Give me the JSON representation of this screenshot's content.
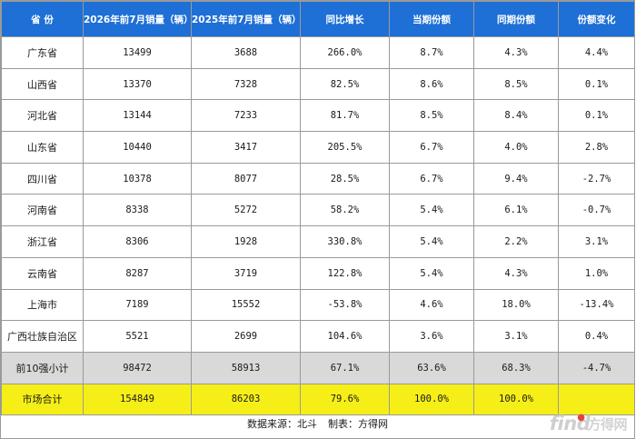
{
  "headers": [
    "省  份",
    "2026年前7月销量（辆）",
    "2025年前7月销量（辆）",
    "同比增长",
    "当期份额",
    "同期份额",
    "份额变化"
  ],
  "rows": [
    {
      "province": "广东省",
      "sales_2026": "13499",
      "sales_2025": "3688",
      "yoy": "266.0%",
      "share_now": "8.7%",
      "share_prev": "4.3%",
      "share_change": "4.4%"
    },
    {
      "province": "山西省",
      "sales_2026": "13370",
      "sales_2025": "7328",
      "yoy": "82.5%",
      "share_now": "8.6%",
      "share_prev": "8.5%",
      "share_change": "0.1%"
    },
    {
      "province": "河北省",
      "sales_2026": "13144",
      "sales_2025": "7233",
      "yoy": "81.7%",
      "share_now": "8.5%",
      "share_prev": "8.4%",
      "share_change": "0.1%"
    },
    {
      "province": "山东省",
      "sales_2026": "10440",
      "sales_2025": "3417",
      "yoy": "205.5%",
      "share_now": "6.7%",
      "share_prev": "4.0%",
      "share_change": "2.8%"
    },
    {
      "province": "四川省",
      "sales_2026": "10378",
      "sales_2025": "8077",
      "yoy": "28.5%",
      "share_now": "6.7%",
      "share_prev": "9.4%",
      "share_change": "-2.7%"
    },
    {
      "province": "河南省",
      "sales_2026": "8338",
      "sales_2025": "5272",
      "yoy": "58.2%",
      "share_now": "5.4%",
      "share_prev": "6.1%",
      "share_change": "-0.7%"
    },
    {
      "province": "浙江省",
      "sales_2026": "8306",
      "sales_2025": "1928",
      "yoy": "330.8%",
      "share_now": "5.4%",
      "share_prev": "2.2%",
      "share_change": "3.1%"
    },
    {
      "province": "云南省",
      "sales_2026": "8287",
      "sales_2025": "3719",
      "yoy": "122.8%",
      "share_now": "5.4%",
      "share_prev": "4.3%",
      "share_change": "1.0%"
    },
    {
      "province": "上海市",
      "sales_2026": "7189",
      "sales_2025": "15552",
      "yoy": "-53.8%",
      "share_now": "4.6%",
      "share_prev": "18.0%",
      "share_change": "-13.4%"
    },
    {
      "province": "广西壮族自治区",
      "sales_2026": "5521",
      "sales_2025": "2699",
      "yoy": "104.6%",
      "share_now": "3.6%",
      "share_prev": "3.1%",
      "share_change": "0.4%"
    }
  ],
  "subtotal": {
    "province": "前10强小计",
    "sales_2026": "98472",
    "sales_2025": "58913",
    "yoy": "67.1%",
    "share_now": "63.6%",
    "share_prev": "68.3%",
    "share_change": "-4.7%"
  },
  "total": {
    "province": "市场合计",
    "sales_2026": "154849",
    "sales_2025": "86203",
    "yoy": "79.6%",
    "share_now": "100.0%",
    "share_prev": "100.0%",
    "share_change": ""
  },
  "footer": {
    "source": "数据来源：北斗",
    "maker": "制表：方得网"
  },
  "watermark": {
    "latin": "find",
    "cn": "方得网"
  },
  "colors": {
    "header_bg": "#1e6fd6",
    "subtotal_bg": "#d9d9d9",
    "total_bg": "#f5ef17"
  }
}
